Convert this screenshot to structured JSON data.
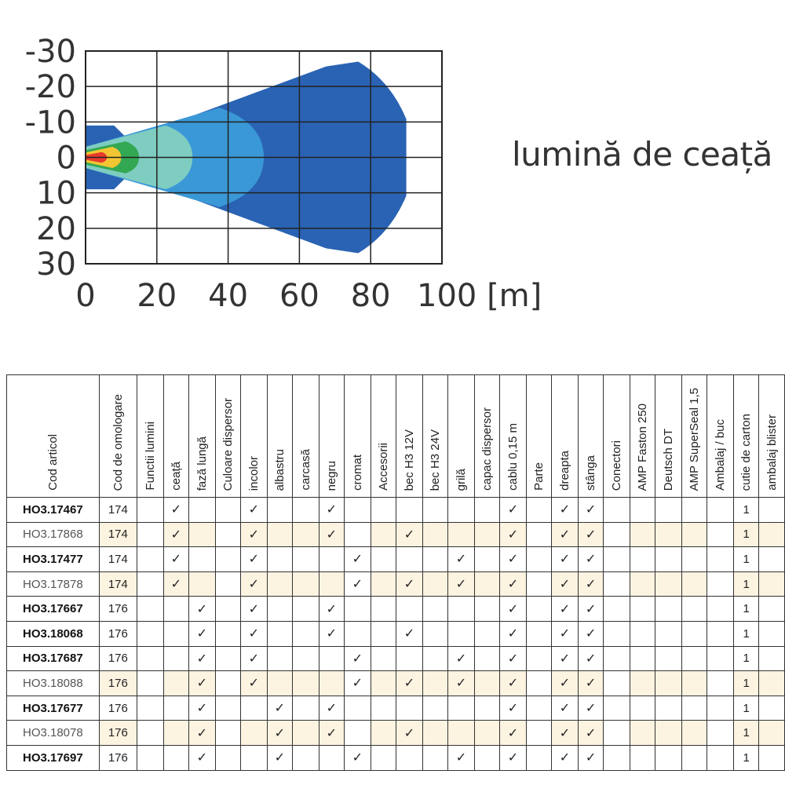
{
  "caption": "lumină de ceață",
  "colors": {
    "band_1": "#2a63b3",
    "band_2": "#3a98d6",
    "band_3": "#7fcdc0",
    "band_4": "#33a852",
    "band_5": "#f2c633",
    "band_6": "#e83a2e",
    "shade": "#fdf3e1"
  },
  "chart_data": {
    "type": "heatmap",
    "description_units": "lateral [m] vs distance [m]",
    "xlim": [
      0,
      100
    ],
    "ylim": [
      -30,
      30
    ],
    "x_ticks": [
      "0",
      "20",
      "40",
      "60",
      "80",
      "100 [m]"
    ],
    "y_ticks": [
      "-30",
      "-20",
      "-10",
      "0",
      "10",
      "20",
      "30"
    ],
    "grid": true,
    "contours": [
      {
        "max_distance": 90,
        "half_width": 27
      },
      {
        "max_distance": 50,
        "half_width": 14
      },
      {
        "max_distance": 30,
        "half_width": 9
      },
      {
        "max_distance": 15,
        "half_width": 4.5
      },
      {
        "max_distance": 10,
        "half_width": 3
      },
      {
        "max_distance": 6,
        "half_width": 1.5
      }
    ]
  },
  "table": {
    "headers": [
      "Cod articol",
      "Cod de omologare",
      "Functii lumini",
      "ceață",
      "fază lungă",
      "Culoare dispersor",
      "incolor",
      "albastru",
      "carcasă",
      "negru",
      "cromat",
      "Accesorii",
      "bec H3 12V",
      "bec H3 24V",
      "grilă",
      "capac dispersor",
      "cablu 0,15 m",
      "Parte",
      "dreapta",
      "stânga",
      "Conectori",
      "AMP Faston 250",
      "Deutsch DT",
      "AMP SuperSeal 1,5",
      "Ambalaj / buc",
      "cutie de carton",
      "ambalaj blister"
    ],
    "check": "✓",
    "rows": [
      {
        "code": "HO3.17467",
        "bold": true,
        "hom": "174",
        "cells": [
          "",
          "✓",
          "",
          "",
          "✓",
          "",
          "",
          "✓",
          "",
          "",
          "",
          "",
          "",
          "",
          "✓",
          "",
          "✓",
          "✓",
          "",
          "",
          "",
          "",
          "",
          "1",
          ""
        ]
      },
      {
        "code": "HO3.17868",
        "bold": false,
        "hom": "174",
        "cells": [
          "",
          "✓",
          "",
          "",
          "✓",
          "",
          "",
          "✓",
          "",
          "",
          "✓",
          "",
          "",
          "",
          "✓",
          "",
          "✓",
          "✓",
          "",
          "",
          "",
          "",
          "",
          "1",
          ""
        ]
      },
      {
        "code": "HO3.17477",
        "bold": true,
        "hom": "174",
        "cells": [
          "",
          "✓",
          "",
          "",
          "✓",
          "",
          "",
          "",
          "✓",
          "",
          "",
          "",
          "✓",
          "",
          "✓",
          "",
          "✓",
          "✓",
          "",
          "",
          "",
          "",
          "",
          "1",
          ""
        ]
      },
      {
        "code": "HO3.17878",
        "bold": false,
        "hom": "174",
        "cells": [
          "",
          "✓",
          "",
          "",
          "✓",
          "",
          "",
          "",
          "✓",
          "",
          "✓",
          "",
          "✓",
          "",
          "✓",
          "",
          "✓",
          "✓",
          "",
          "",
          "",
          "",
          "",
          "1",
          ""
        ]
      },
      {
        "code": "HO3.17667",
        "bold": true,
        "hom": "176",
        "cells": [
          "",
          "",
          "✓",
          "",
          "✓",
          "",
          "",
          "✓",
          "",
          "",
          "",
          "",
          "",
          "",
          "✓",
          "",
          "✓",
          "✓",
          "",
          "",
          "",
          "",
          "",
          "1",
          ""
        ]
      },
      {
        "code": "HO3.18068",
        "bold": true,
        "hom": "176",
        "cells": [
          "",
          "",
          "✓",
          "",
          "✓",
          "",
          "",
          "✓",
          "",
          "",
          "✓",
          "",
          "",
          "",
          "✓",
          "",
          "✓",
          "✓",
          "",
          "",
          "",
          "",
          "",
          "1",
          ""
        ]
      },
      {
        "code": "HO3.17687",
        "bold": true,
        "hom": "176",
        "cells": [
          "",
          "",
          "✓",
          "",
          "✓",
          "",
          "",
          "",
          "✓",
          "",
          "",
          "",
          "✓",
          "",
          "✓",
          "",
          "✓",
          "✓",
          "",
          "",
          "",
          "",
          "",
          "1",
          ""
        ]
      },
      {
        "code": "HO3.18088",
        "bold": false,
        "hom": "176",
        "cells": [
          "",
          "",
          "✓",
          "",
          "✓",
          "",
          "",
          "",
          "✓",
          "",
          "✓",
          "",
          "✓",
          "",
          "✓",
          "",
          "✓",
          "✓",
          "",
          "",
          "",
          "",
          "",
          "1",
          ""
        ]
      },
      {
        "code": "HO3.17677",
        "bold": true,
        "hom": "176",
        "cells": [
          "",
          "",
          "✓",
          "",
          "",
          "✓",
          "",
          "✓",
          "",
          "",
          "",
          "",
          "",
          "",
          "✓",
          "",
          "✓",
          "✓",
          "",
          "",
          "",
          "",
          "",
          "1",
          ""
        ]
      },
      {
        "code": "HO3.18078",
        "bold": false,
        "hom": "176",
        "cells": [
          "",
          "",
          "✓",
          "",
          "",
          "✓",
          "",
          "✓",
          "",
          "",
          "✓",
          "",
          "",
          "",
          "✓",
          "",
          "✓",
          "✓",
          "",
          "",
          "",
          "",
          "",
          "1",
          ""
        ]
      },
      {
        "code": "HO3.17697",
        "bold": true,
        "hom": "176",
        "cells": [
          "",
          "",
          "✓",
          "",
          "",
          "✓",
          "",
          "",
          "✓",
          "",
          "",
          "",
          "✓",
          "",
          "✓",
          "",
          "✓",
          "✓",
          "",
          "",
          "",
          "",
          "",
          "1",
          ""
        ]
      }
    ]
  }
}
